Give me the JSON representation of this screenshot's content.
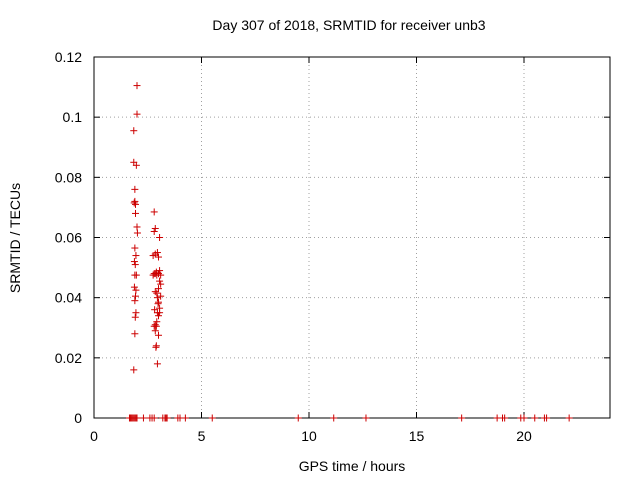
{
  "chart_data": {
    "type": "scatter",
    "title": "Day 307 of 2018, SRMTID for receiver unb3",
    "xlabel": "GPS time / hours",
    "ylabel": "SRMTID / TECUs",
    "xlim": [
      0,
      24
    ],
    "ylim": [
      0,
      0.12
    ],
    "x_ticks": [
      0,
      5,
      10,
      15,
      20
    ],
    "y_ticks": [
      0,
      0.02,
      0.04,
      0.06,
      0.08,
      0.1,
      0.12
    ],
    "x_tick_labels": [
      "0",
      "5",
      "10",
      "15",
      "20"
    ],
    "y_tick_labels": [
      "0",
      "0.02",
      "0.04",
      "0.06",
      "0.08",
      "0.1",
      "0.12"
    ],
    "grid": true,
    "marker": "+",
    "color": "#cc0000",
    "series": [
      {
        "points": [
          [
            1.85,
            0.016
          ],
          [
            1.9,
            0.028
          ],
          [
            1.92,
            0.0335
          ],
          [
            1.95,
            0.035
          ],
          [
            1.9,
            0.039
          ],
          [
            1.93,
            0.0405
          ],
          [
            1.95,
            0.0425
          ],
          [
            1.88,
            0.0435
          ],
          [
            1.9,
            0.0475
          ],
          [
            1.97,
            0.0475
          ],
          [
            1.92,
            0.051
          ],
          [
            1.88,
            0.052
          ],
          [
            1.95,
            0.054
          ],
          [
            1.9,
            0.0565
          ],
          [
            2.02,
            0.0615
          ],
          [
            2.0,
            0.0635
          ],
          [
            1.93,
            0.068
          ],
          [
            1.87,
            0.0715
          ],
          [
            1.9,
            0.072
          ],
          [
            1.93,
            0.071
          ],
          [
            1.9,
            0.076
          ],
          [
            1.97,
            0.084
          ],
          [
            1.85,
            0.085
          ],
          [
            1.85,
            0.0955
          ],
          [
            2.0,
            0.101
          ],
          [
            2.0,
            0.1105
          ],
          [
            2.95,
            0.018
          ],
          [
            2.9,
            0.024
          ],
          [
            2.88,
            0.0235
          ],
          [
            3.0,
            0.0275
          ],
          [
            2.85,
            0.029
          ],
          [
            2.8,
            0.0305
          ],
          [
            2.85,
            0.031
          ],
          [
            2.92,
            0.032
          ],
          [
            2.9,
            0.0305
          ],
          [
            3.0,
            0.034
          ],
          [
            3.05,
            0.035
          ],
          [
            2.95,
            0.035
          ],
          [
            2.82,
            0.036
          ],
          [
            3.05,
            0.0365
          ],
          [
            2.98,
            0.038
          ],
          [
            3.0,
            0.0385
          ],
          [
            2.95,
            0.04
          ],
          [
            3.1,
            0.0405
          ],
          [
            2.85,
            0.042
          ],
          [
            2.92,
            0.0415
          ],
          [
            3.0,
            0.043
          ],
          [
            3.1,
            0.0445
          ],
          [
            3.05,
            0.0455
          ],
          [
            3.1,
            0.0475
          ],
          [
            2.75,
            0.0475
          ],
          [
            2.8,
            0.048
          ],
          [
            2.85,
            0.048
          ],
          [
            2.92,
            0.0475
          ],
          [
            3.0,
            0.048
          ],
          [
            3.05,
            0.049
          ],
          [
            2.9,
            0.0485
          ],
          [
            2.75,
            0.054
          ],
          [
            2.85,
            0.0545
          ],
          [
            2.95,
            0.055
          ],
          [
            3.0,
            0.0535
          ],
          [
            3.05,
            0.06
          ],
          [
            2.8,
            0.062
          ],
          [
            2.85,
            0.063
          ],
          [
            2.8,
            0.0685
          ],
          [
            1.65,
            0
          ],
          [
            1.7,
            0
          ],
          [
            1.75,
            0
          ],
          [
            1.8,
            0
          ],
          [
            1.85,
            0
          ],
          [
            1.9,
            0
          ],
          [
            1.95,
            0
          ],
          [
            2.0,
            0
          ],
          [
            2.3,
            0
          ],
          [
            2.6,
            0
          ],
          [
            2.7,
            0
          ],
          [
            2.8,
            0
          ],
          [
            3.2,
            0
          ],
          [
            3.3,
            0
          ],
          [
            3.35,
            0
          ],
          [
            3.4,
            0
          ],
          [
            3.9,
            0
          ],
          [
            4.0,
            0
          ],
          [
            4.25,
            0
          ],
          [
            5.5,
            0
          ],
          [
            9.5,
            0
          ],
          [
            11.15,
            0
          ],
          [
            12.65,
            0
          ],
          [
            17.1,
            0
          ],
          [
            18.75,
            0
          ],
          [
            19.0,
            0
          ],
          [
            19.1,
            0
          ],
          [
            19.85,
            0
          ],
          [
            20.0,
            0
          ],
          [
            20.5,
            0
          ],
          [
            20.95,
            0
          ],
          [
            21.05,
            0
          ],
          [
            22.1,
            0
          ]
        ]
      }
    ]
  }
}
